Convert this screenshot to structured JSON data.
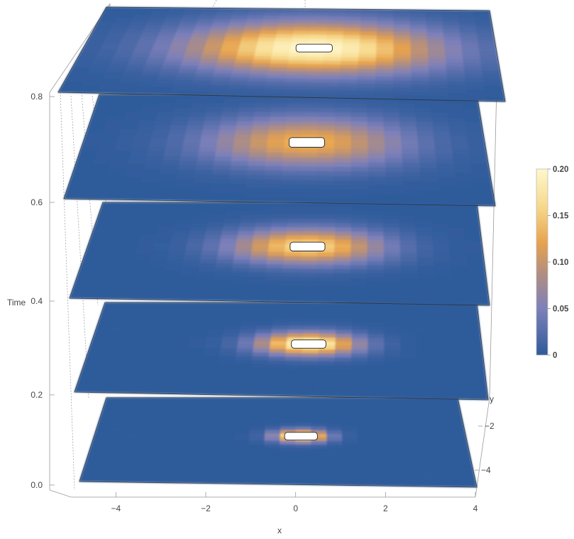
{
  "chart_data": {
    "type": "heatmap",
    "title": "",
    "xlabel": "x",
    "ylabel": "y",
    "zlabel": "Time",
    "x_ticks": [
      -4,
      -2,
      0,
      2,
      4
    ],
    "y_ticks": [
      -2,
      -4
    ],
    "time_ticks": [
      0.0,
      0.2,
      0.4,
      0.6,
      0.8
    ],
    "time_tick_labels": [
      "0.0",
      "0.2",
      "0.4",
      "0.6",
      "0.8"
    ],
    "xlim": [
      -5,
      4
    ],
    "ylim": [
      -5,
      4
    ],
    "zlim": [
      0,
      0.8
    ],
    "colorbar": {
      "range": [
        0,
        0.2
      ],
      "ticks": [
        0,
        0.05,
        0.1,
        0.15,
        0.2
      ],
      "tick_labels": [
        "0",
        "0.05",
        "0.10",
        "0.15",
        "0.20"
      ],
      "colors": [
        "#2e5b9b",
        "#7d80ba",
        "#b58f7d",
        "#e6a24e",
        "#f7d98c",
        "#fff8cc"
      ]
    },
    "slices": [
      {
        "time": 0.0,
        "center": [
          0.0,
          0.0
        ],
        "sigma": [
          0.45,
          0.45
        ],
        "peak": 0.2
      },
      {
        "time": 0.2,
        "center": [
          0.0,
          0.0
        ],
        "sigma": [
          0.8,
          0.75
        ],
        "peak": 0.2
      },
      {
        "time": 0.4,
        "center": [
          0.0,
          0.0
        ],
        "sigma": [
          1.2,
          1.1
        ],
        "peak": 0.16
      },
      {
        "time": 0.6,
        "center": [
          0.0,
          0.0
        ],
        "sigma": [
          1.55,
          1.45
        ],
        "peak": 0.13
      },
      {
        "time": 0.8,
        "center": [
          0.0,
          0.0
        ],
        "sigma": [
          1.9,
          1.8
        ],
        "peak": 0.2
      }
    ],
    "grid": false,
    "legend": "right"
  }
}
